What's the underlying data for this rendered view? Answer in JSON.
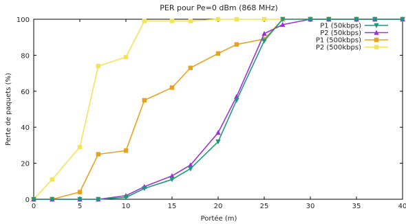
{
  "chart_data": {
    "type": "line",
    "title": "PER pour Pe=0 dBm (868 MHz)",
    "xlabel": "Portée (m)",
    "ylabel": "Perte de paquets (%)",
    "xlim": [
      0,
      40
    ],
    "ylim": [
      0,
      100
    ],
    "xticks": [
      0,
      5,
      10,
      15,
      20,
      25,
      30,
      35,
      40
    ],
    "yticks": [
      0,
      20,
      40,
      60,
      80,
      100
    ],
    "grid": false,
    "legend_position": "top-right",
    "series": [
      {
        "name": "P1 (50kbps)",
        "color": "#1a9a7a",
        "marker": "triangle-down",
        "x": [
          0,
          2,
          5,
          7,
          10,
          12,
          15,
          17,
          20,
          22,
          25,
          27,
          30,
          32,
          35,
          37,
          40
        ],
        "y": [
          0,
          0,
          0,
          0,
          1,
          6,
          11,
          17,
          32,
          55,
          88,
          100,
          100,
          100,
          100,
          100,
          100
        ]
      },
      {
        "name": "P2 (50kbps)",
        "color": "#9b30d9",
        "marker": "triangle-up",
        "x": [
          0,
          2,
          5,
          7,
          10,
          12,
          15,
          17,
          20,
          22,
          25,
          27,
          30,
          32,
          35,
          37,
          40
        ],
        "y": [
          0,
          0,
          0,
          0,
          2,
          7,
          13,
          19,
          37,
          57,
          92,
          97,
          100,
          100,
          100,
          100,
          100
        ]
      },
      {
        "name": "P1 (500kbps)",
        "color": "#e8a020",
        "marker": "square",
        "x": [
          0,
          2,
          5,
          7,
          10,
          12,
          15,
          17,
          20,
          22,
          25,
          27,
          30,
          32,
          35,
          37,
          40
        ],
        "y": [
          0,
          0,
          4,
          25,
          27,
          55,
          62,
          73,
          81,
          86,
          89,
          100,
          100,
          100,
          100,
          100,
          100
        ]
      },
      {
        "name": "P2 (500kbps)",
        "color": "#f3e35a",
        "marker": "square",
        "x": [
          0,
          2,
          5,
          7,
          10,
          12,
          15,
          17,
          20,
          22,
          25,
          27,
          30,
          32,
          35,
          37,
          40
        ],
        "y": [
          0,
          11,
          29,
          74,
          79,
          99,
          99,
          99,
          100,
          100,
          100,
          100,
          100,
          100,
          100,
          100,
          100
        ]
      }
    ]
  }
}
